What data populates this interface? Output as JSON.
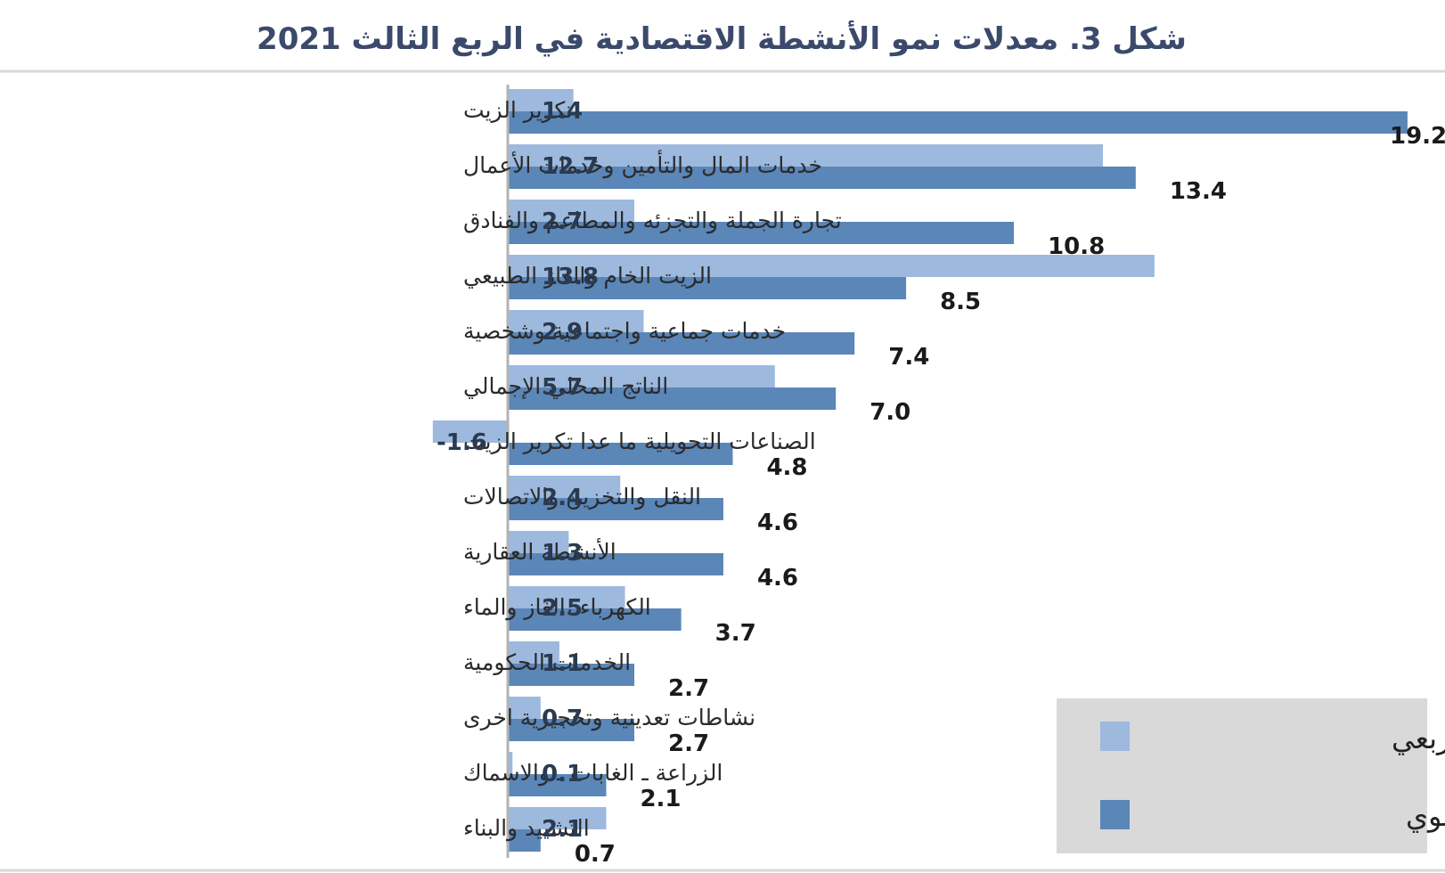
{
  "chart_data": {
    "type": "bar",
    "orientation": "horizontal",
    "title": "شكل 3. معدلات نمو الأنشطة الاقتصادية في الربع الثالث 2021",
    "categories": [
      "تكرير الزيت",
      "خدمات المال والتأمين وخدمات الأعمال",
      "تجارة الجملة والتجزئه والمطاعم والفنادق",
      "الزيت الخام والغاز الطبيعي",
      "خدمات جماعية واجتماعية وشخصية",
      "الناتج المحلي الإجمالي",
      "الصناعات التحويلية ما عدا تكرير الزيت",
      "النقل والتخزين والاتصالات",
      "الأنشطة العقارية",
      "الكهرباء ،الغاز والماء",
      "الخدمات الحكومية",
      "نشاطات تعدينية وتحجيرية اخرى",
      "الزراعة ـ الغابات ـ والاسماك",
      "التشييد والبناء"
    ],
    "series": [
      {
        "name": "على أساس ربعي",
        "color": "#9db9de",
        "values": [
          1.4,
          12.7,
          2.7,
          13.8,
          2.9,
          5.7,
          -1.6,
          2.4,
          1.3,
          2.5,
          1.1,
          0.7,
          0.1,
          2.1
        ],
        "labels": [
          "1.4",
          "12.7",
          "2.7",
          "13.8",
          "2.9",
          "5.7",
          "-1.6",
          "2.4",
          "1.3",
          "2.5",
          "1.1",
          "0.7",
          "0.1",
          "2.1"
        ]
      },
      {
        "name": "على أساس سنوي",
        "color": "#5b86b8",
        "values": [
          19.2,
          13.4,
          10.8,
          8.5,
          7.4,
          7.0,
          4.8,
          4.6,
          4.6,
          3.7,
          2.7,
          2.7,
          2.1,
          0.7
        ],
        "labels": [
          "19.2",
          "13.4",
          "10.8",
          "8.5",
          "7.4",
          "7.0",
          "4.8",
          "4.6",
          "4.6",
          "3.7",
          "2.7",
          "2.7",
          "2.1",
          "0.7"
        ]
      }
    ],
    "xlim": [
      -1.6,
      19.2
    ],
    "legend": "bottom-right",
    "grid": false
  }
}
